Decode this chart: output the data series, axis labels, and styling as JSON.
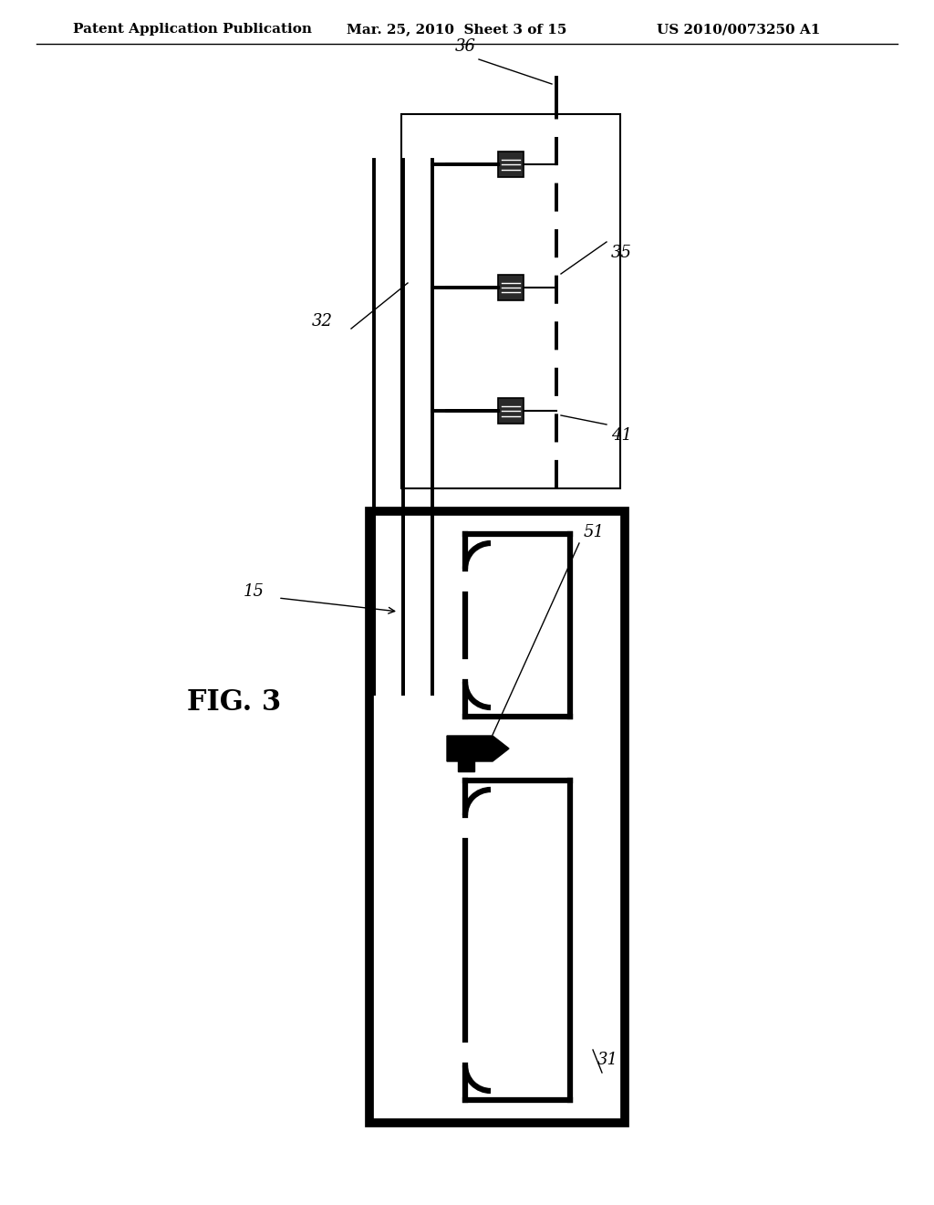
{
  "title_left": "Patent Application Publication",
  "title_mid": "Mar. 25, 2010  Sheet 3 of 15",
  "title_right": "US 2010/0073250 A1",
  "fig_label": "FIG. 3",
  "bg_color": "#ffffff",
  "line_color": "#000000",
  "header_fontsize": 11,
  "label_fontsize": 13
}
